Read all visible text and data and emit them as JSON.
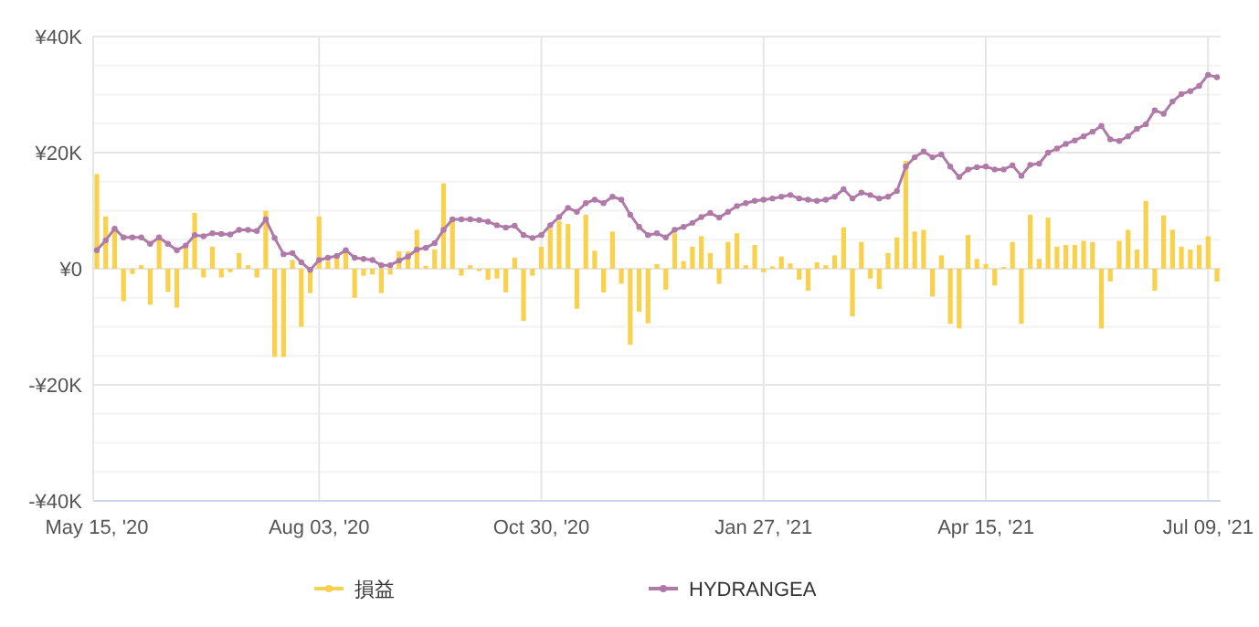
{
  "chart_data": {
    "type": "bar",
    "categories": [
      "May 15, '20",
      null,
      null,
      null,
      null,
      null,
      null,
      null,
      null,
      null,
      null,
      null,
      null,
      null,
      null,
      null,
      null,
      null,
      null,
      null,
      null,
      null,
      null,
      null,
      null,
      "Aug 03, '20",
      null,
      null,
      null,
      null,
      null,
      null,
      null,
      null,
      null,
      null,
      null,
      null,
      null,
      null,
      null,
      null,
      null,
      null,
      null,
      null,
      null,
      null,
      null,
      null,
      "Oct 30, '20",
      null,
      null,
      null,
      null,
      null,
      null,
      null,
      null,
      null,
      null,
      null,
      null,
      null,
      null,
      null,
      null,
      null,
      null,
      null,
      null,
      null,
      null,
      null,
      null,
      "Jan 27, '21",
      null,
      null,
      null,
      null,
      null,
      null,
      null,
      null,
      null,
      null,
      null,
      null,
      null,
      null,
      null,
      null,
      null,
      null,
      null,
      null,
      null,
      null,
      null,
      null,
      "Apr 15, '21",
      null,
      null,
      null,
      null,
      null,
      null,
      null,
      null,
      null,
      null,
      null,
      null,
      null,
      null,
      null,
      null,
      null,
      null,
      null,
      null,
      null,
      null,
      null,
      null,
      "Jul 09, '21",
      null
    ],
    "series": [
      {
        "name": "損益",
        "type": "bar",
        "color": "#f9d14c",
        "values": [
          16300,
          9000,
          6700,
          -5600,
          -900,
          600,
          -6200,
          5600,
          -4000,
          -6700,
          3800,
          9600,
          -1500,
          3800,
          -1500,
          -600,
          2700,
          600,
          -1500,
          10000,
          -15200,
          -15200,
          1500,
          -10000,
          -4200,
          9000,
          1300,
          1900,
          3000,
          -5000,
          -1200,
          -1000,
          -4200,
          -1000,
          3000,
          3000,
          6700,
          500,
          3300,
          14700,
          8400,
          -1200,
          600,
          -400,
          -1900,
          -1700,
          -4100,
          1900,
          -9000,
          -1200,
          3800,
          6900,
          8200,
          7700,
          -6900,
          9300,
          3100,
          -4100,
          6400,
          -2600,
          -13100,
          -7400,
          -9400,
          800,
          -3600,
          6100,
          1300,
          3800,
          5600,
          2700,
          -2600,
          4600,
          6100,
          600,
          4100,
          -600,
          400,
          2100,
          900,
          -1900,
          -3800,
          1100,
          600,
          2300,
          7100,
          -8200,
          4600,
          -1700,
          -3500,
          2700,
          5400,
          18600,
          6400,
          6700,
          -4800,
          2300,
          -9500,
          -10300,
          5800,
          1700,
          800,
          -2900,
          300,
          4600,
          -9500,
          9300,
          1700,
          8800,
          3800,
          4100,
          4100,
          4800,
          4600,
          -10300,
          -2200,
          4800,
          6700,
          3300,
          11700,
          -3800,
          9200,
          6700,
          3800,
          3300,
          4100,
          5600,
          -2200
        ]
      },
      {
        "name": "HYDRANGEA",
        "type": "line",
        "color": "#b07aa8",
        "values": [
          3200,
          4900,
          6900,
          5400,
          5400,
          5400,
          4300,
          5400,
          4300,
          3200,
          4000,
          5800,
          5600,
          6100,
          6000,
          5900,
          6700,
          6700,
          6500,
          8500,
          5300,
          2500,
          2700,
          1100,
          -200,
          1500,
          1900,
          2200,
          3200,
          1900,
          1700,
          1500,
          600,
          600,
          1400,
          2100,
          3300,
          3600,
          4400,
          6700,
          8500,
          8500,
          8500,
          8400,
          8100,
          7500,
          7100,
          7400,
          5800,
          5300,
          5800,
          7500,
          8900,
          10500,
          9800,
          11300,
          11900,
          11300,
          12400,
          11900,
          9300,
          7200,
          5800,
          6100,
          5400,
          6700,
          7200,
          7900,
          8900,
          9600,
          8800,
          9800,
          10800,
          11300,
          11700,
          11900,
          12100,
          12400,
          12700,
          12100,
          11900,
          11700,
          11900,
          12400,
          13700,
          12100,
          13100,
          12700,
          12100,
          12400,
          13400,
          17600,
          19200,
          20200,
          19200,
          19700,
          17600,
          15800,
          17100,
          17500,
          17600,
          17100,
          17100,
          17800,
          16000,
          17900,
          18100,
          20000,
          20700,
          21500,
          22100,
          22800,
          23600,
          24600,
          22300,
          22000,
          22800,
          24100,
          24900,
          27300,
          26700,
          28800,
          30100,
          30600,
          31500,
          33400,
          33000
        ]
      }
    ],
    "ylim": [
      -40000,
      40000
    ],
    "yticks": [
      {
        "value": -40000,
        "label": "-¥40K"
      },
      {
        "value": -35000,
        "label": null
      },
      {
        "value": -30000,
        "label": null
      },
      {
        "value": -25000,
        "label": null
      },
      {
        "value": -20000,
        "label": "-¥20K"
      },
      {
        "value": -15000,
        "label": null
      },
      {
        "value": -10000,
        "label": null
      },
      {
        "value": -5000,
        "label": null
      },
      {
        "value": 0,
        "label": "¥0"
      },
      {
        "value": 5000,
        "label": null
      },
      {
        "value": 10000,
        "label": null
      },
      {
        "value": 15000,
        "label": null
      },
      {
        "value": 20000,
        "label": "¥20K"
      },
      {
        "value": 25000,
        "label": null
      },
      {
        "value": 30000,
        "label": null
      },
      {
        "value": 35000,
        "label": null
      },
      {
        "value": 40000,
        "label": "¥40K"
      }
    ],
    "grid": true,
    "legend": "bottom",
    "marker": "circle",
    "line_style": "solid"
  }
}
